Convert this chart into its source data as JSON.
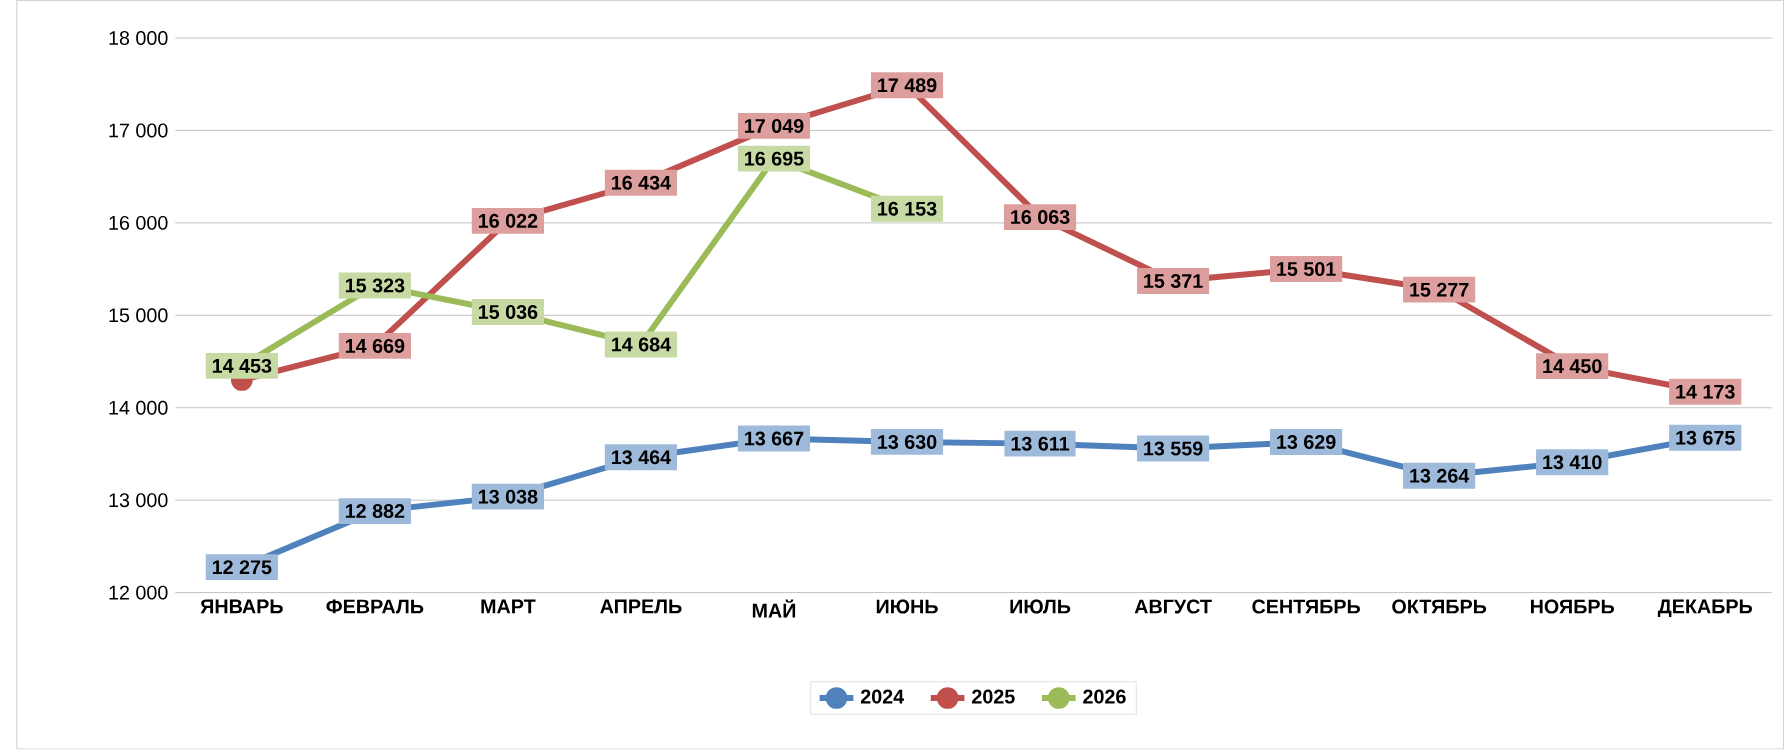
{
  "chart_data": {
    "type": "line",
    "categories": [
      "ЯНВАРЬ",
      "ФЕВРАЛЬ",
      "МАРТ",
      "АПРЕЛЬ",
      "МАЙ",
      "ИЮНЬ",
      "ИЮЛЬ",
      "АВГУСТ",
      "СЕНТЯБРЬ",
      "ОКТЯБРЬ",
      "НОЯБРЬ",
      "ДЕКАБРЬ"
    ],
    "series": [
      {
        "name": "2024",
        "color": "#4f81bd",
        "values": [
          12275,
          12882,
          13038,
          13464,
          13667,
          13630,
          13611,
          13559,
          13629,
          13264,
          13410,
          13675
        ],
        "value_labels": [
          "12 275",
          "12 882",
          "13 038",
          "13 464",
          "13 667",
          "13 630",
          "13 611",
          "13 559",
          "13 629",
          "13 264",
          "13 410",
          "13 675"
        ]
      },
      {
        "name": "2025",
        "color": "#c0504d",
        "values": [
          14300,
          14669,
          16022,
          16434,
          17049,
          17489,
          16063,
          15371,
          15501,
          15277,
          14450,
          14173
        ],
        "value_labels": [
          null,
          "14 669",
          "16 022",
          "16 434",
          "17 049",
          "17 489",
          "16 063",
          "15 371",
          "15 501",
          "15 277",
          "14 450",
          "14 173"
        ]
      },
      {
        "name": "2026",
        "color": "#9bbb59",
        "values": [
          14453,
          15323,
          15036,
          14684,
          16695,
          16153,
          null,
          null,
          null,
          null,
          null,
          null
        ],
        "value_labels": [
          "14 453",
          "15 323",
          "15 036",
          "14 684",
          "16 695",
          "16 153",
          null,
          null,
          null,
          null,
          null,
          null
        ]
      }
    ],
    "ylim": [
      12000,
      18000
    ],
    "yticks": [
      {
        "value": 12000,
        "label": "12 000"
      },
      {
        "value": 13000,
        "label": "13 000"
      },
      {
        "value": 14000,
        "label": "14 000"
      },
      {
        "value": 15000,
        "label": "15 000"
      },
      {
        "value": 16000,
        "label": "16 000"
      },
      {
        "value": 17000,
        "label": "17 000"
      },
      {
        "value": 18000,
        "label": "18 000"
      }
    ],
    "grid": "y",
    "legend": "bottom",
    "marker": "circle",
    "line_style": "solid"
  }
}
